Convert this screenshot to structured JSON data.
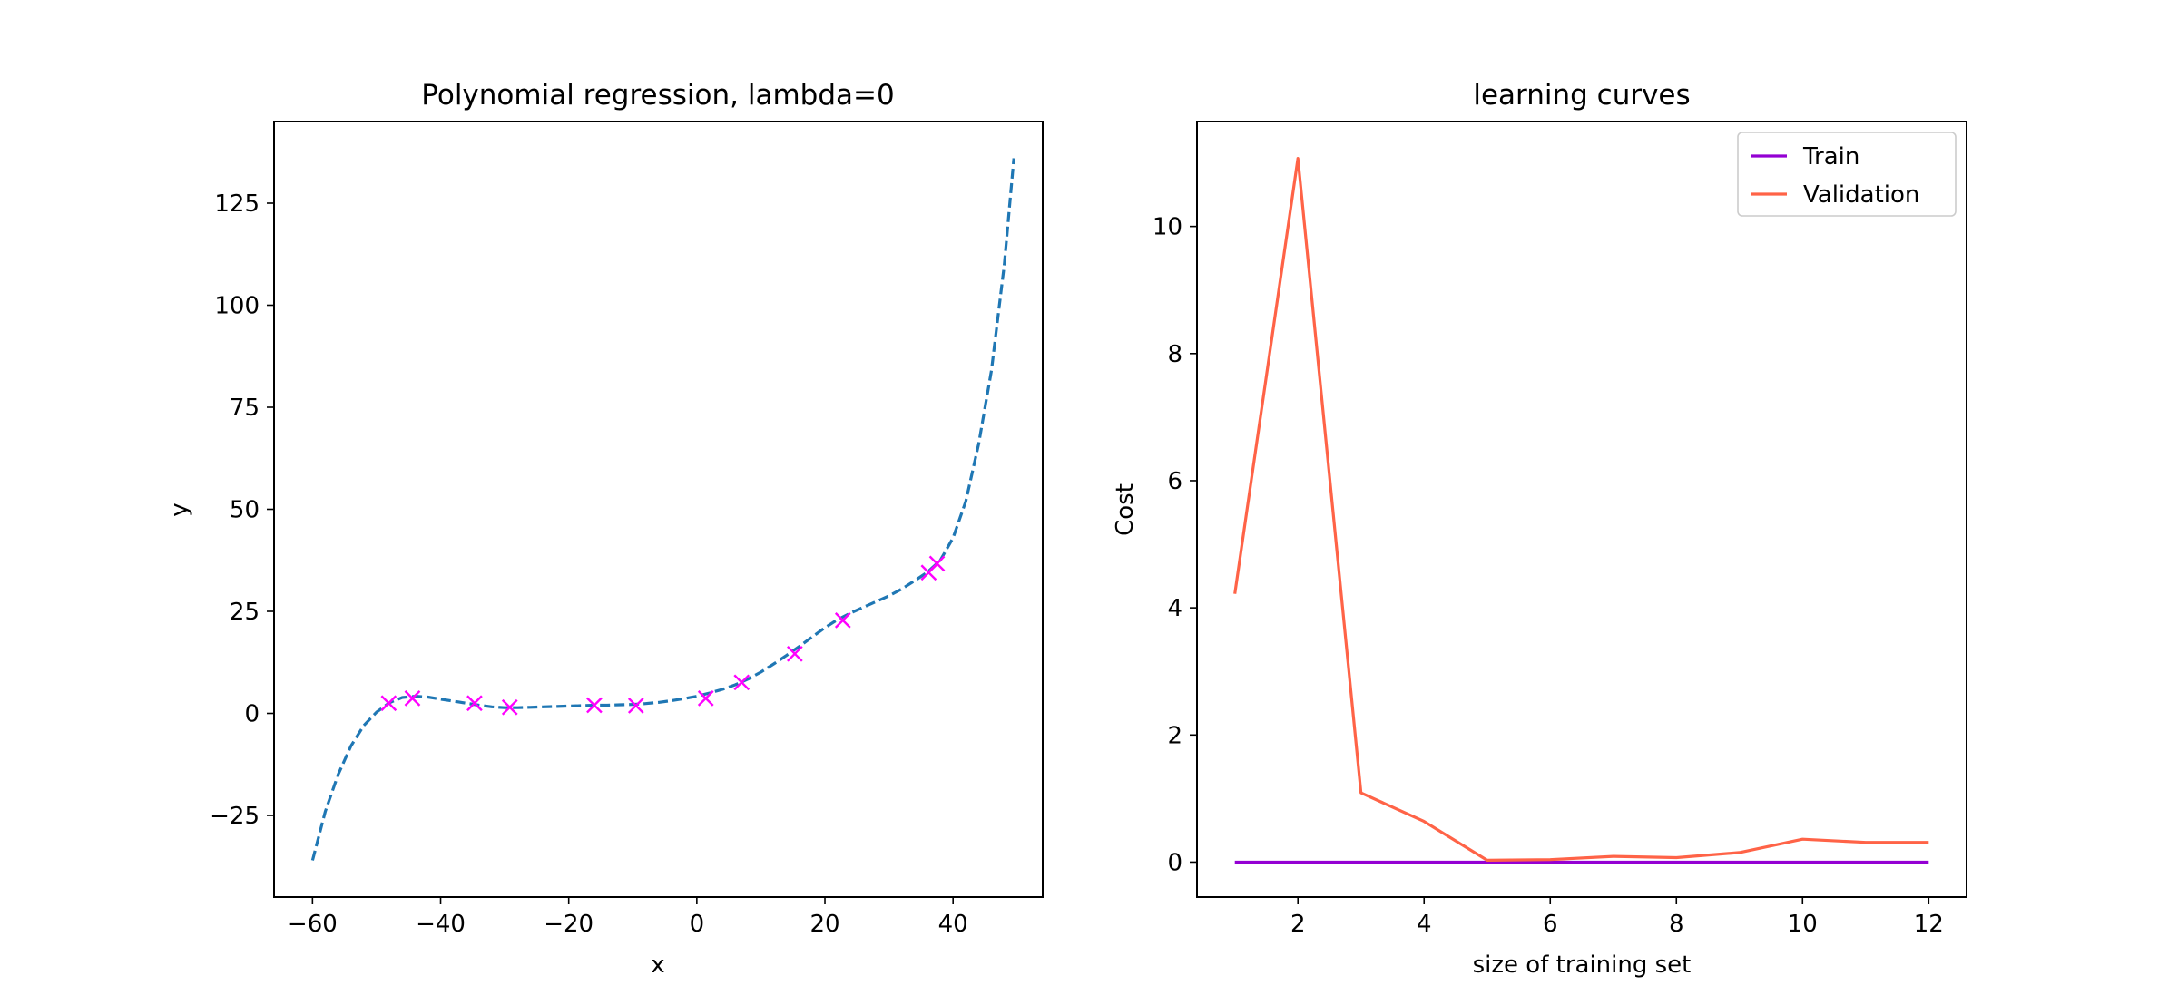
{
  "chart_data": [
    {
      "type": "line",
      "title": "Polynomial regression, lambda=0",
      "xlabel": "x",
      "ylabel": "y",
      "xlim": [
        -66,
        54
      ],
      "ylim": [
        -45,
        145
      ],
      "xticks": [
        -60,
        -40,
        -20,
        0,
        20,
        40
      ],
      "yticks": [
        -25,
        0,
        25,
        50,
        75,
        100,
        125
      ],
      "grid": false,
      "series": [
        {
          "kind": "scatter",
          "marker": "x",
          "color": "#ff00ff",
          "x": [
            -48.1,
            -44.4,
            -34.7,
            -29.2,
            -16.0,
            -9.5,
            1.4,
            7.0,
            15.3,
            22.8,
            36.2,
            37.5
          ],
          "y": [
            2.5,
            3.7,
            2.5,
            1.5,
            2.0,
            1.9,
            3.7,
            7.6,
            14.6,
            22.8,
            34.5,
            36.7
          ]
        },
        {
          "kind": "line",
          "style": "dashed",
          "color": "#1f77b4",
          "x": [
            -60,
            -58,
            -56,
            -54,
            -52,
            -50,
            -48,
            -46,
            -44,
            -42,
            -40,
            -38,
            -36,
            -34,
            -32,
            -30,
            -28,
            -26,
            -24,
            -22,
            -20,
            -18,
            -16,
            -14,
            -12,
            -10,
            -8,
            -6,
            -4,
            -2,
            0,
            2,
            4,
            6,
            8,
            10,
            12,
            14,
            16,
            18,
            20,
            22,
            24,
            26,
            28,
            30,
            32,
            34,
            36,
            38,
            40,
            42,
            44,
            46,
            48,
            49.5
          ],
          "y": [
            -36,
            -24,
            -15,
            -8,
            -3,
            0.3,
            2.6,
            3.9,
            4.2,
            4.0,
            3.5,
            3.0,
            2.5,
            2.0,
            1.6,
            1.4,
            1.4,
            1.5,
            1.6,
            1.7,
            1.8,
            1.9,
            2.0,
            2.0,
            2.1,
            2.2,
            2.4,
            2.7,
            3.1,
            3.6,
            4.2,
            5.0,
            5.9,
            7.0,
            8.4,
            10.1,
            12.1,
            14.2,
            16.4,
            18.7,
            21.0,
            23.0,
            24.6,
            26.0,
            27.4,
            28.8,
            30.5,
            32.5,
            34.6,
            37.5,
            43,
            52,
            66,
            84,
            110,
            136
          ]
        }
      ]
    },
    {
      "type": "line",
      "title": "learning curves",
      "xlabel": "size of training set",
      "ylabel": "Cost",
      "xlim": [
        0.4,
        12.6
      ],
      "ylim": [
        -0.55,
        11.65
      ],
      "xticks": [
        2,
        4,
        6,
        8,
        10,
        12
      ],
      "yticks": [
        0,
        2,
        4,
        6,
        8,
        10
      ],
      "grid": false,
      "legend_position": "top-right",
      "x": [
        1,
        2,
        3,
        4,
        5,
        6,
        7,
        8,
        9,
        10,
        11,
        12
      ],
      "series": [
        {
          "name": "Train",
          "color": "#9400d3",
          "values": [
            0,
            0,
            0,
            0,
            0,
            0,
            0,
            0,
            0,
            0,
            0,
            0
          ]
        },
        {
          "name": "Validation",
          "color": "#ff6347",
          "values": [
            4.22,
            11.07,
            1.09,
            0.64,
            0.03,
            0.04,
            0.09,
            0.07,
            0.15,
            0.36,
            0.31,
            0.31
          ]
        }
      ]
    }
  ]
}
